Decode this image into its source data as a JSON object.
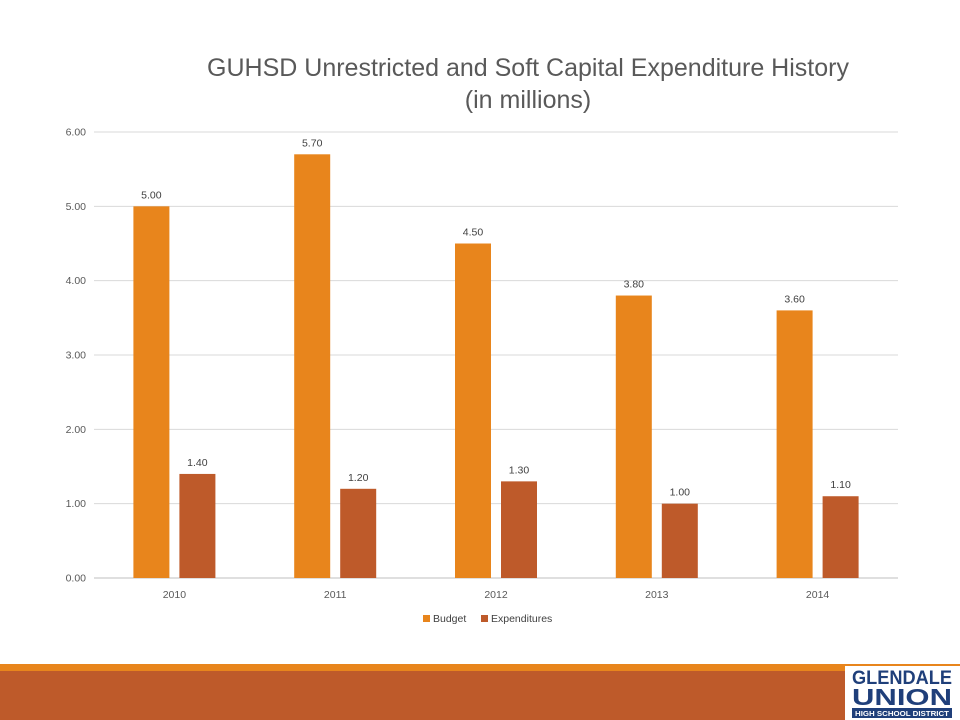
{
  "chart_data": {
    "type": "bar",
    "title_line1": "GUHSD Unrestricted and Soft Capital Expenditure History",
    "title_line2": "(in millions)",
    "categories": [
      "2010",
      "2011",
      "2012",
      "2013",
      "2014"
    ],
    "series": [
      {
        "name": "Budget",
        "color": "#E8851C",
        "values": [
          5.0,
          5.7,
          4.5,
          3.8,
          3.6
        ]
      },
      {
        "name": "Expenditures",
        "color": "#BE5A2A",
        "values": [
          1.4,
          1.2,
          1.3,
          1.0,
          1.1
        ]
      }
    ],
    "ylim": [
      0,
      6
    ],
    "yticks": [
      "0.00",
      "1.00",
      "2.00",
      "3.00",
      "4.00",
      "5.00",
      "6.00"
    ],
    "grid": true,
    "legend_position": "bottom",
    "value_decimals": 2
  },
  "logo": {
    "line1": "GLENDALE",
    "line2": "UNION",
    "line3": "HIGH SCHOOL DISTRICT",
    "color": "#1F3F7A"
  },
  "theme": {
    "accent_orange": "#E8851C",
    "accent_rust": "#BE5A2A"
  }
}
